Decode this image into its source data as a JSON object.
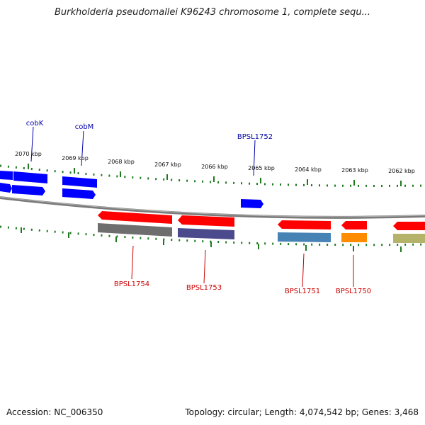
{
  "title": "Burkholderia pseudomallei K96243 chromosome 1, complete sequ...",
  "footer": {
    "accession": "Accession: NC_006350",
    "summary": "Topology: circular; Length: 4,074,542 bp; Genes: 3,468"
  },
  "colors": {
    "tick": "#1e7a1e",
    "backbone": "#888888",
    "forward_gene": "#0000ff",
    "reverse_gene": "#ff0000",
    "forward_label": "#0000aa",
    "reverse_label": "#cc0000"
  },
  "ticks": [
    "2070 kbp",
    "2069 kbp",
    "2068 kbp",
    "2067 kbp",
    "2066 kbp",
    "2065 kbp",
    "2064 kbp",
    "2063 kbp",
    "2062 kbp"
  ],
  "gene_labels": {
    "cobK": "cobK",
    "cobM": "cobM",
    "BPSL1752": "BPSL1752",
    "BPSL1754": "BPSL1754",
    "BPSL1753": "BPSL1753",
    "BPSL1751": "BPSL1751",
    "BPSL1750": "BPSL1750"
  },
  "categories": {
    "grey": "#6e6e6e",
    "purple": "#4a4a8c",
    "steelblue": "#4682b4",
    "orange": "#ff8c00",
    "khaki": "#b5b36a"
  }
}
